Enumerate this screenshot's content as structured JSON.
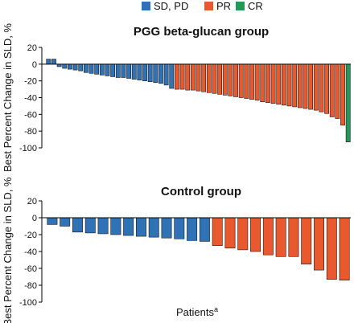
{
  "legend": {
    "placement": "top-center",
    "items": [
      {
        "label": "SD, PD",
        "color": "#2f72b6"
      },
      {
        "label": "PR",
        "color": "#e9592e"
      },
      {
        "label": "CR",
        "color": "#219a58"
      }
    ]
  },
  "xlabel": "Patients",
  "xlabel_sup": "a",
  "chart_data": [
    {
      "type": "bar",
      "title": "PGG beta-glucan group",
      "ylabel": "Best Percent Change in SLD, %",
      "ylim": [
        -100,
        20
      ],
      "yticks": [
        20,
        0,
        -20,
        -40,
        -60,
        -80,
        -100
      ],
      "grid": false,
      "series": [
        {
          "name": "SD, PD",
          "color": "#2f72b6",
          "values": [
            6,
            6,
            -3,
            -5,
            -6,
            -7,
            -8,
            -10,
            -11,
            -12,
            -13,
            -14,
            -15,
            -16,
            -16,
            -17,
            -18,
            -19,
            -20,
            -21,
            -22,
            -23,
            -25,
            -29
          ]
        },
        {
          "name": "PR",
          "color": "#e9592e",
          "values": [
            -30,
            -30,
            -31,
            -31,
            -32,
            -33,
            -34,
            -35,
            -36,
            -37,
            -38,
            -39,
            -40,
            -41,
            -42,
            -43,
            -45,
            -46,
            -47,
            -48,
            -49,
            -50,
            -51,
            -52,
            -53,
            -54,
            -55,
            -57,
            -59,
            -63,
            -65,
            -73
          ]
        },
        {
          "name": "CR",
          "color": "#219a58",
          "values": [
            -93
          ]
        }
      ]
    },
    {
      "type": "bar",
      "title": "Control group",
      "ylabel": "Best Percent Change in SLD, %",
      "ylim": [
        -100,
        20
      ],
      "yticks": [
        20,
        0,
        -20,
        -40,
        -60,
        -80,
        -100
      ],
      "grid": false,
      "series": [
        {
          "name": "SD, PD",
          "color": "#2f72b6",
          "values": [
            -8,
            -10,
            -17,
            -18,
            -19,
            -20,
            -21,
            -22,
            -23,
            -24,
            -25,
            -27,
            -28
          ]
        },
        {
          "name": "PR",
          "color": "#e9592e",
          "values": [
            -33,
            -36,
            -38,
            -40,
            -44,
            -46,
            -46,
            -55,
            -62,
            -73,
            -74
          ]
        }
      ]
    }
  ]
}
